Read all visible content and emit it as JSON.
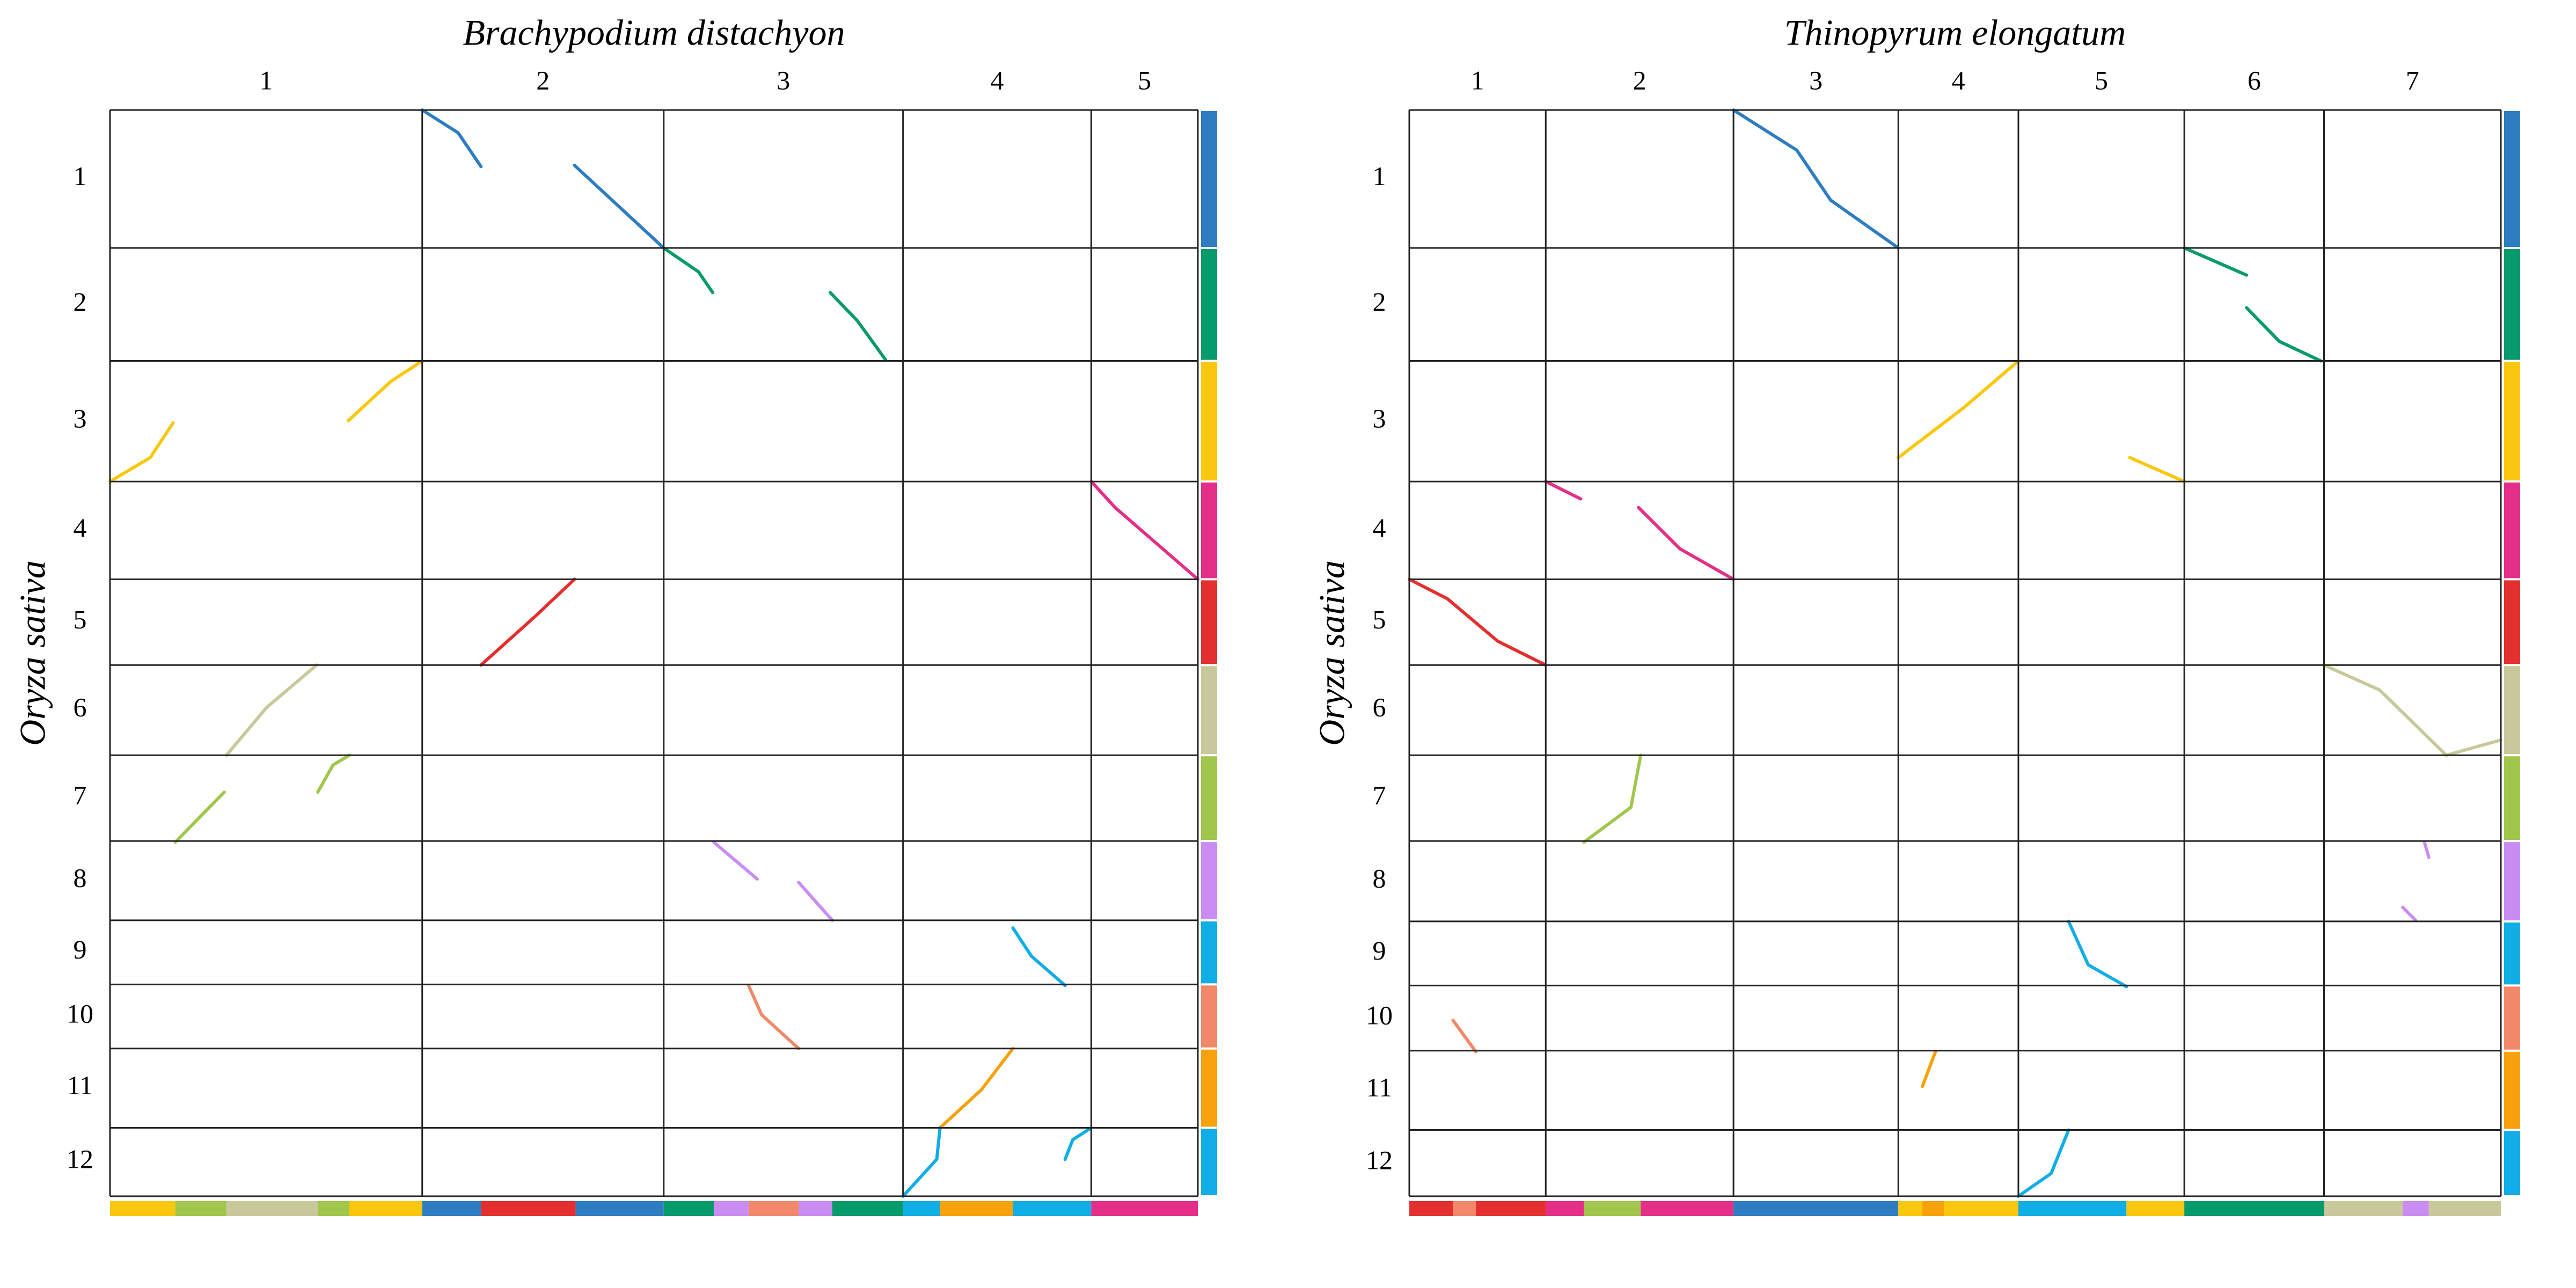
{
  "chart_data": [
    {
      "type": "dotplot",
      "title": "Brachypodium distachyon",
      "ylabel": "Oryza sativa",
      "xlim": [
        0,
        100
      ],
      "ylim": [
        0,
        100
      ],
      "y_inverted": true,
      "x_categories": [
        "1",
        "2",
        "3",
        "4",
        "5"
      ],
      "x_bounds": [
        0,
        28.7,
        50.9,
        72.9,
        90.2,
        100
      ],
      "y_categories": [
        "1",
        "2",
        "3",
        "4",
        "5",
        "6",
        "7",
        "8",
        "9",
        "10",
        "11",
        "12"
      ],
      "y_bounds": [
        0,
        12.7,
        23.1,
        34.2,
        43.2,
        51.1,
        59.4,
        67.3,
        74.6,
        80.5,
        86.4,
        93.7,
        100
      ],
      "y_colors": [
        "#2e7dc1",
        "#079a6b",
        "#f9c70e",
        "#e42f88",
        "#e3302e",
        "#c9c89a",
        "#a0c64c",
        "#c98df2",
        "#11aee6",
        "#f2886a",
        "#f7a20c",
        "#10ade6"
      ],
      "x_band_bounds": [
        0,
        6.0,
        10.7,
        19.1,
        22.0,
        28.7,
        34.1,
        42.8,
        50.9,
        55.5,
        58.7,
        63.3,
        66.4,
        72.9,
        76.3,
        83.0,
        90.2,
        100
      ],
      "x_band_colors": [
        "#f9c70e",
        "#a0c64c",
        "#c9c89a",
        "#a0c64c",
        "#f9c70e",
        "#2e7dc1",
        "#e3302e",
        "#2e7dc1",
        "#079a6b",
        "#c98df2",
        "#f2886a",
        "#c98df2",
        "#079a6b",
        "#11aee6",
        "#f7a20c",
        "#11aee6",
        "#e42f88"
      ],
      "segments": [
        {
          "color": "#2e7dc1",
          "x": [
            28.7,
            32.0,
            34.1
          ],
          "y": [
            0,
            2.1,
            5.2
          ]
        },
        {
          "color": "#2e7dc1",
          "x": [
            42.7,
            50.9
          ],
          "y": [
            5.1,
            12.7
          ]
        },
        {
          "color": "#079a6b",
          "x": [
            50.9,
            54.1,
            55.4
          ],
          "y": [
            12.7,
            14.9,
            16.8
          ]
        },
        {
          "color": "#079a6b",
          "x": [
            66.2,
            68.7,
            71.3
          ],
          "y": [
            16.8,
            19.4,
            23.0
          ]
        },
        {
          "color": "#f9c70e",
          "x": [
            0,
            3.7,
            5.8
          ],
          "y": [
            34.2,
            32.0,
            28.8
          ]
        },
        {
          "color": "#f9c70e",
          "x": [
            21.9,
            25.8,
            28.7
          ],
          "y": [
            28.6,
            25.0,
            23.1
          ]
        },
        {
          "color": "#e42f88",
          "x": [
            90.2,
            92.4,
            100
          ],
          "y": [
            34.2,
            36.6,
            43.2
          ]
        },
        {
          "color": "#e3302e",
          "x": [
            34.1,
            39.1,
            42.7
          ],
          "y": [
            51.1,
            46.6,
            43.2
          ]
        },
        {
          "color": "#c9c89a",
          "x": [
            10.7,
            14.4,
            19.0
          ],
          "y": [
            59.4,
            55.0,
            51.1
          ]
        },
        {
          "color": "#a0c64c",
          "x": [
            6.0,
            10.5
          ],
          "y": [
            67.4,
            62.8
          ]
        },
        {
          "color": "#a0c64c",
          "x": [
            19.1,
            20.5,
            22.0
          ],
          "y": [
            62.8,
            60.3,
            59.4
          ]
        },
        {
          "color": "#c98df2",
          "x": [
            55.5,
            59.5
          ],
          "y": [
            67.4,
            70.8
          ]
        },
        {
          "color": "#c98df2",
          "x": [
            63.3,
            66.4
          ],
          "y": [
            71.1,
            74.6
          ]
        },
        {
          "color": "#11aee6",
          "x": [
            83.0,
            84.7,
            87.8
          ],
          "y": [
            75.3,
            77.9,
            80.6
          ]
        },
        {
          "color": "#f2886a",
          "x": [
            58.7,
            59.9,
            63.3
          ],
          "y": [
            80.6,
            83.3,
            86.4
          ]
        },
        {
          "color": "#f7a20c",
          "x": [
            76.3,
            80.1,
            83.0
          ],
          "y": [
            93.7,
            90.2,
            86.4
          ]
        },
        {
          "color": "#10ade6",
          "x": [
            72.9,
            76.0,
            76.3
          ],
          "y": [
            100,
            96.6,
            93.7
          ]
        },
        {
          "color": "#10ade6",
          "x": [
            87.8,
            88.5,
            90.2
          ],
          "y": [
            96.6,
            94.8,
            93.7
          ]
        }
      ]
    },
    {
      "type": "dotplot",
      "title": "Thinopyrum elongatum",
      "ylabel": "Oryza sativa",
      "xlim": [
        0,
        100
      ],
      "ylim": [
        0,
        100
      ],
      "y_inverted": true,
      "x_categories": [
        "1",
        "2",
        "3",
        "4",
        "5",
        "6",
        "7"
      ],
      "x_bounds": [
        0,
        12.5,
        29.7,
        44.8,
        55.8,
        71.0,
        83.8,
        100
      ],
      "y_categories": [
        "1",
        "2",
        "3",
        "4",
        "5",
        "6",
        "7",
        "8",
        "9",
        "10",
        "11",
        "12"
      ],
      "y_bounds": [
        0,
        12.7,
        23.1,
        34.2,
        43.2,
        51.1,
        59.4,
        67.3,
        74.7,
        80.6,
        86.6,
        93.9,
        100
      ],
      "y_colors": [
        "#2e7dc1",
        "#079a6b",
        "#f9c70e",
        "#e42f88",
        "#e3302e",
        "#c9c89a",
        "#a0c64c",
        "#c98df2",
        "#11aee6",
        "#f2886a",
        "#f7a20c",
        "#10ade6"
      ],
      "x_band_bounds": [
        0,
        4.0,
        6.1,
        12.5,
        16.0,
        21.2,
        29.7,
        44.8,
        47.0,
        49.0,
        55.8,
        65.7,
        71.0,
        83.8,
        91.0,
        93.4,
        100
      ],
      "x_band_colors": [
        "#e3302e",
        "#f2886a",
        "#e3302e",
        "#e42f88",
        "#a0c64c",
        "#e42f88",
        "#2e7dc1",
        "#f9c70e",
        "#f7a20c",
        "#f9c70e",
        "#11aee6",
        "#f9c70e",
        "#079a6b",
        "#c9c89a",
        "#c98df2",
        "#c9c89a"
      ],
      "segments": [
        {
          "color": "#2e7dc1",
          "x": [
            29.7,
            35.5,
            38.6,
            44.8
          ],
          "y": [
            0,
            3.7,
            8.3,
            12.7
          ]
        },
        {
          "color": "#079a6b",
          "x": [
            71.0,
            76.7
          ],
          "y": [
            12.7,
            15.2
          ]
        },
        {
          "color": "#079a6b",
          "x": [
            76.7,
            79.7,
            83.5
          ],
          "y": [
            18.2,
            21.3,
            23.1
          ]
        },
        {
          "color": "#f9c70e",
          "x": [
            44.8,
            50.8,
            55.8
          ],
          "y": [
            32.0,
            27.4,
            23.1
          ]
        },
        {
          "color": "#f9c70e",
          "x": [
            66.0,
            71.0
          ],
          "y": [
            32.0,
            34.2
          ]
        },
        {
          "color": "#e42f88",
          "x": [
            12.5,
            15.7
          ],
          "y": [
            34.2,
            35.8
          ]
        },
        {
          "color": "#e42f88",
          "x": [
            21.0,
            24.8,
            29.7
          ],
          "y": [
            36.6,
            40.4,
            43.2
          ]
        },
        {
          "color": "#e3302e",
          "x": [
            0,
            3.5,
            8.1,
            12.5
          ],
          "y": [
            43.2,
            45.0,
            48.9,
            51.1
          ]
        },
        {
          "color": "#c9c89a",
          "x": [
            83.8,
            88.9,
            95.0,
            100
          ],
          "y": [
            51.1,
            53.4,
            59.4,
            58.0
          ]
        },
        {
          "color": "#a0c64c",
          "x": [
            16.0,
            20.3,
            21.2
          ],
          "y": [
            67.4,
            64.2,
            59.4
          ]
        },
        {
          "color": "#c98df2",
          "x": [
            93.0,
            93.4
          ],
          "y": [
            67.4,
            68.8
          ]
        },
        {
          "color": "#c98df2",
          "x": [
            91.0,
            92.2
          ],
          "y": [
            73.4,
            74.6
          ]
        },
        {
          "color": "#11aee6",
          "x": [
            60.4,
            62.2,
            65.7
          ],
          "y": [
            74.7,
            78.7,
            80.7
          ]
        },
        {
          "color": "#f2886a",
          "x": [
            4.0,
            6.1
          ],
          "y": [
            83.8,
            86.7
          ]
        },
        {
          "color": "#f7a20c",
          "x": [
            47.0,
            48.2
          ],
          "y": [
            89.9,
            86.7
          ]
        },
        {
          "color": "#10ade6",
          "x": [
            55.8,
            58.8,
            60.4
          ],
          "y": [
            100,
            97.9,
            93.9
          ]
        }
      ]
    }
  ]
}
